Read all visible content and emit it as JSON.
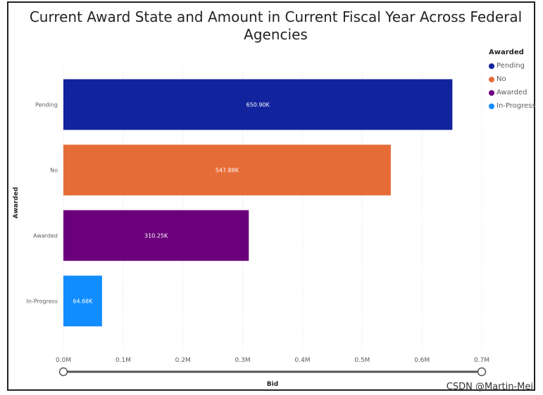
{
  "chart_data": {
    "type": "bar",
    "orientation": "horizontal",
    "title": "Current Award State and Amount in Current Fiscal Year Across Federal Agencies",
    "xlabel": "Bid",
    "ylabel": "Awarded",
    "categories": [
      "Pending",
      "No",
      "Awarded",
      "In-Progress"
    ],
    "values": [
      650900,
      547880,
      310250,
      64680
    ],
    "data_labels": [
      "650.90K",
      "547.88K",
      "310.25K",
      "64.68K"
    ],
    "colors": [
      "#12239e",
      "#e66c37",
      "#6b007b",
      "#118dff"
    ],
    "xlim": [
      0,
      700000
    ],
    "x_ticks": [
      {
        "value": 0,
        "label": "0.0M"
      },
      {
        "value": 100000,
        "label": "0.1M"
      },
      {
        "value": 200000,
        "label": "0.2M"
      },
      {
        "value": 300000,
        "label": "0.3M"
      },
      {
        "value": 400000,
        "label": "0.4M"
      },
      {
        "value": 500000,
        "label": "0.5M"
      },
      {
        "value": 600000,
        "label": "0.6M"
      },
      {
        "value": 700000,
        "label": "0.7M"
      }
    ],
    "grid": "vertical-dotted",
    "legend": {
      "title": "Awarded",
      "placement": "top-right",
      "items": [
        "Pending",
        "No",
        "Awarded",
        "In-Progress"
      ]
    }
  },
  "watermark": "CSDN @Martin-Mei"
}
